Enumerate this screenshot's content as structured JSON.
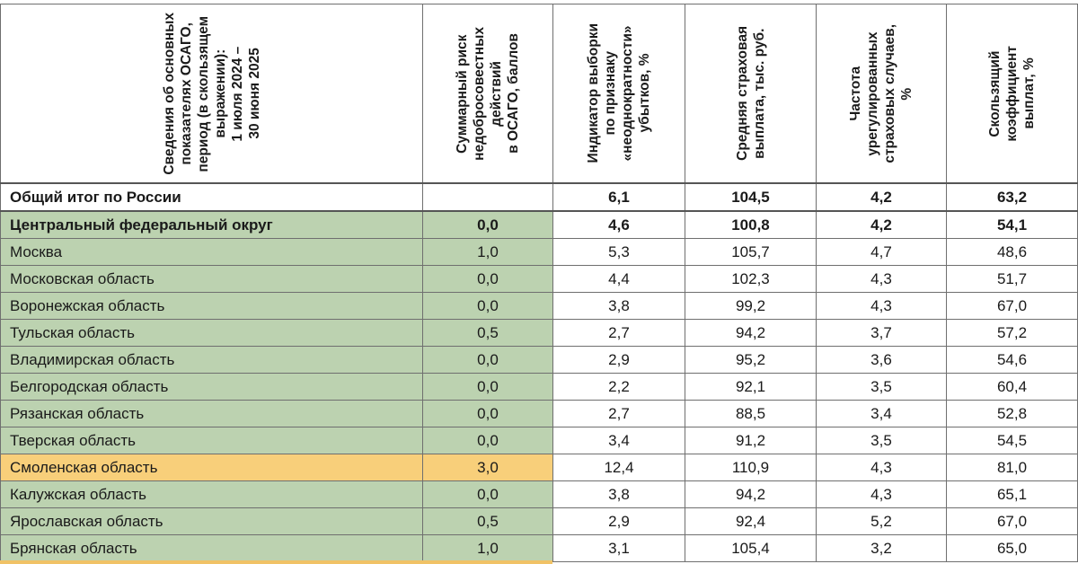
{
  "headers": [
    "Сведения об основных\nпоказателях ОСАГО,\nпериод (в скользящем\nвыражении):\n1 июля 2024 –\n30 июня 2025",
    "Суммарный риск\nнедобросовестных\nдействий\nв ОСАГО, баллов",
    "Индикатор выборки\nпо признаку\n«неоднократности»\nубытков, %",
    "Средняя страховая\nвыплата, тыс. руб.",
    "Частота\nурегулированных\nстраховых случаев,\n%",
    "Скользящий\nкоэффициент\nвыплат, %"
  ],
  "total_row": {
    "name": "Общий итог по России",
    "risk": "",
    "indicator": "6,1",
    "avg_payment": "104,5",
    "frequency": "4,2",
    "ratio": "63,2"
  },
  "district_row": {
    "name": "Центральный федеральный округ",
    "risk": "0,0",
    "indicator": "4,6",
    "avg_payment": "100,8",
    "frequency": "4,2",
    "ratio": "54,1"
  },
  "rows": [
    {
      "name": "Москва",
      "risk": "1,0",
      "indicator": "5,3",
      "avg_payment": "105,7",
      "frequency": "4,7",
      "ratio": "48,6",
      "highlight": "green"
    },
    {
      "name": "Московская область",
      "risk": "0,0",
      "indicator": "4,4",
      "avg_payment": "102,3",
      "frequency": "4,3",
      "ratio": "51,7",
      "highlight": "green"
    },
    {
      "name": "Воронежская область",
      "risk": "0,0",
      "indicator": "3,8",
      "avg_payment": "99,2",
      "frequency": "4,3",
      "ratio": "67,0",
      "highlight": "green"
    },
    {
      "name": "Тульская область",
      "risk": "0,5",
      "indicator": "2,7",
      "avg_payment": "94,2",
      "frequency": "3,7",
      "ratio": "57,2",
      "highlight": "green"
    },
    {
      "name": "Владимирская область",
      "risk": "0,0",
      "indicator": "2,9",
      "avg_payment": "95,2",
      "frequency": "3,6",
      "ratio": "54,6",
      "highlight": "green"
    },
    {
      "name": "Белгородская область",
      "risk": "0,0",
      "indicator": "2,2",
      "avg_payment": "92,1",
      "frequency": "3,5",
      "ratio": "60,4",
      "highlight": "green"
    },
    {
      "name": "Рязанская область",
      "risk": "0,0",
      "indicator": "2,7",
      "avg_payment": "88,5",
      "frequency": "3,4",
      "ratio": "52,8",
      "highlight": "green"
    },
    {
      "name": "Тверская область",
      "risk": "0,0",
      "indicator": "3,4",
      "avg_payment": "91,2",
      "frequency": "3,5",
      "ratio": "54,5",
      "highlight": "green"
    },
    {
      "name": "Смоленская область",
      "risk": "3,0",
      "indicator": "12,4",
      "avg_payment": "110,9",
      "frequency": "4,3",
      "ratio": "81,0",
      "highlight": "orange"
    },
    {
      "name": "Калужская область",
      "risk": "0,0",
      "indicator": "3,8",
      "avg_payment": "94,2",
      "frequency": "4,3",
      "ratio": "65,1",
      "highlight": "green"
    },
    {
      "name": "Ярославская область",
      "risk": "0,5",
      "indicator": "2,9",
      "avg_payment": "92,4",
      "frequency": "5,2",
      "ratio": "67,0",
      "highlight": "green"
    },
    {
      "name": "Брянская область",
      "risk": "1,0",
      "indicator": "3,1",
      "avg_payment": "105,4",
      "frequency": "3,2",
      "ratio": "65,0",
      "highlight": "green"
    }
  ],
  "colors": {
    "green_fill": "#bcd2b0",
    "orange_fill": "#f8cf7a",
    "border": "#6f6f6f"
  }
}
